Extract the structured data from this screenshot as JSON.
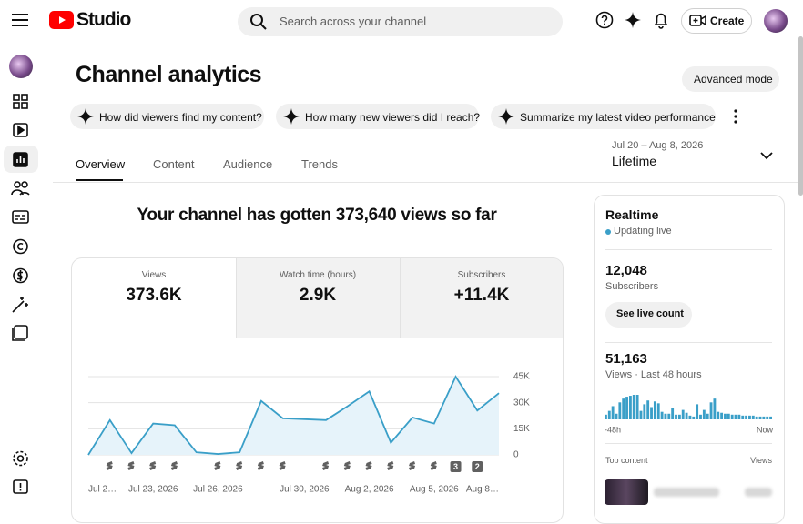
{
  "header": {
    "logo": "Studio",
    "search_placeholder": "Search across your channel",
    "create": "Create"
  },
  "page": {
    "title": "Channel analytics",
    "advanced_mode": "Advanced mode",
    "chips": [
      "How did viewers find my content?",
      "How many new viewers did I reach?",
      "Summarize my latest video performance"
    ],
    "date_range": "Jul 20 – Aug 8, 2026",
    "period": "Lifetime",
    "tabs": [
      "Overview",
      "Content",
      "Audience",
      "Trends"
    ],
    "headline": "Your channel has gotten 373,640 views so far"
  },
  "metrics": [
    {
      "label": "Views",
      "value": "373.6K"
    },
    {
      "label": "Watch time (hours)",
      "value": "2.9K"
    },
    {
      "label": "Subscribers",
      "value": "+11.4K"
    }
  ],
  "upload_markers": [
    "3",
    "2"
  ],
  "chart_data": [
    {
      "type": "line",
      "color": "#3a9fc8",
      "grid": true,
      "categories": [
        "Jul 2…",
        null,
        null,
        "Jul 23, 2026",
        null,
        null,
        "Jul 26, 2026",
        null,
        null,
        null,
        "Jul 30, 2026",
        null,
        null,
        "Aug 2, 2026",
        null,
        null,
        "Aug 5, 2026",
        null,
        null,
        "Aug 8…"
      ],
      "values": [
        0,
        20000,
        1000,
        18000,
        17000,
        1500,
        500,
        1500,
        31000,
        21000,
        20500,
        20000,
        28000,
        36500,
        7000,
        21500,
        18000,
        45000,
        25500,
        35500
      ],
      "ylim": [
        0,
        45000
      ],
      "yticks": [
        0,
        {
          "value": 15000,
          "label": "15K"
        },
        {
          "value": 30000,
          "label": "30K"
        },
        {
          "value": 45000,
          "label": "45K"
        }
      ]
    },
    {
      "type": "bar",
      "color": "#3a9fc8",
      "x_labels": [
        "-48h",
        "Now"
      ],
      "values": [
        5,
        9,
        14,
        6,
        18,
        22,
        24,
        25,
        26,
        26,
        9,
        16,
        20,
        13,
        19,
        17,
        8,
        6,
        6,
        12,
        5,
        5,
        10,
        7,
        4,
        3,
        16,
        5,
        10,
        6,
        18,
        22,
        8,
        7,
        6,
        6,
        5,
        5,
        5,
        4,
        4,
        4,
        4,
        3,
        3,
        3,
        3,
        3
      ]
    }
  ],
  "realtime": {
    "title": "Realtime",
    "status": "Updating live",
    "subscribers": "12,048",
    "subscribers_label": "Subscribers",
    "live_count": "See live count",
    "views": "51,163",
    "views_label": "Views · Last 48 hours",
    "top_content": "Top content",
    "views_column": "Views"
  }
}
